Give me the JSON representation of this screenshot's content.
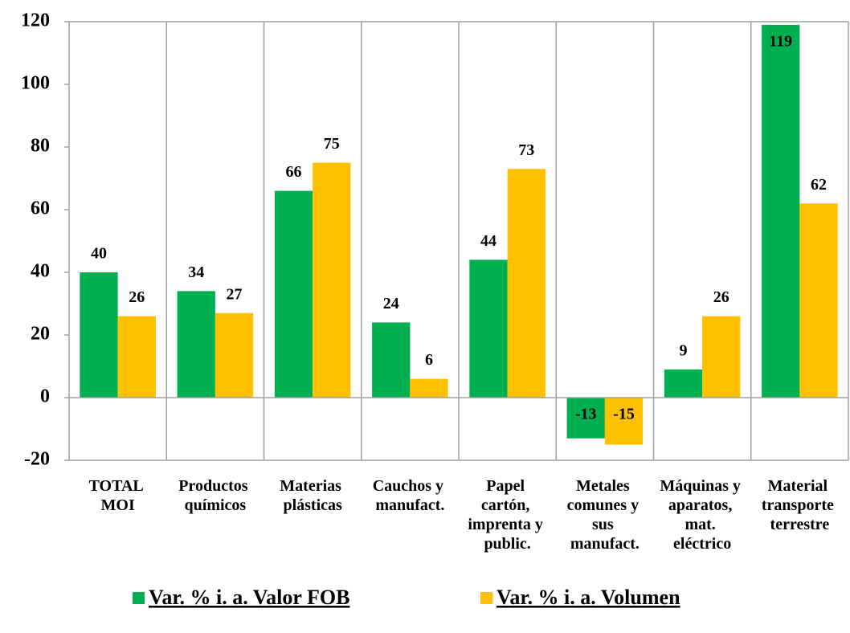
{
  "chart_data": {
    "type": "bar",
    "categories": [
      "TOTAL MOI",
      "Productos químicos",
      "Materias plásticas",
      "Cauchos y manufact.",
      "Papel cartón, imprenta y public.",
      "Metales comunes y sus manufact.",
      "Máquinas y aparatos, mat. eléctrico",
      "Material transporte terrestre"
    ],
    "series": [
      {
        "name": "Var. % i. a. Valor FOB",
        "color": "#00b050",
        "values": [
          40,
          34,
          66,
          24,
          44,
          -13,
          9,
          119
        ]
      },
      {
        "name": "Var. % i. a. Volumen",
        "color": "#ffc000",
        "values": [
          26,
          27,
          75,
          6,
          73,
          -15,
          26,
          62
        ]
      }
    ],
    "ylim": [
      -20,
      120
    ],
    "yticks": [
      -20,
      0,
      20,
      40,
      60,
      80,
      100,
      120
    ],
    "grid": "vertical",
    "legend": "bottom"
  }
}
